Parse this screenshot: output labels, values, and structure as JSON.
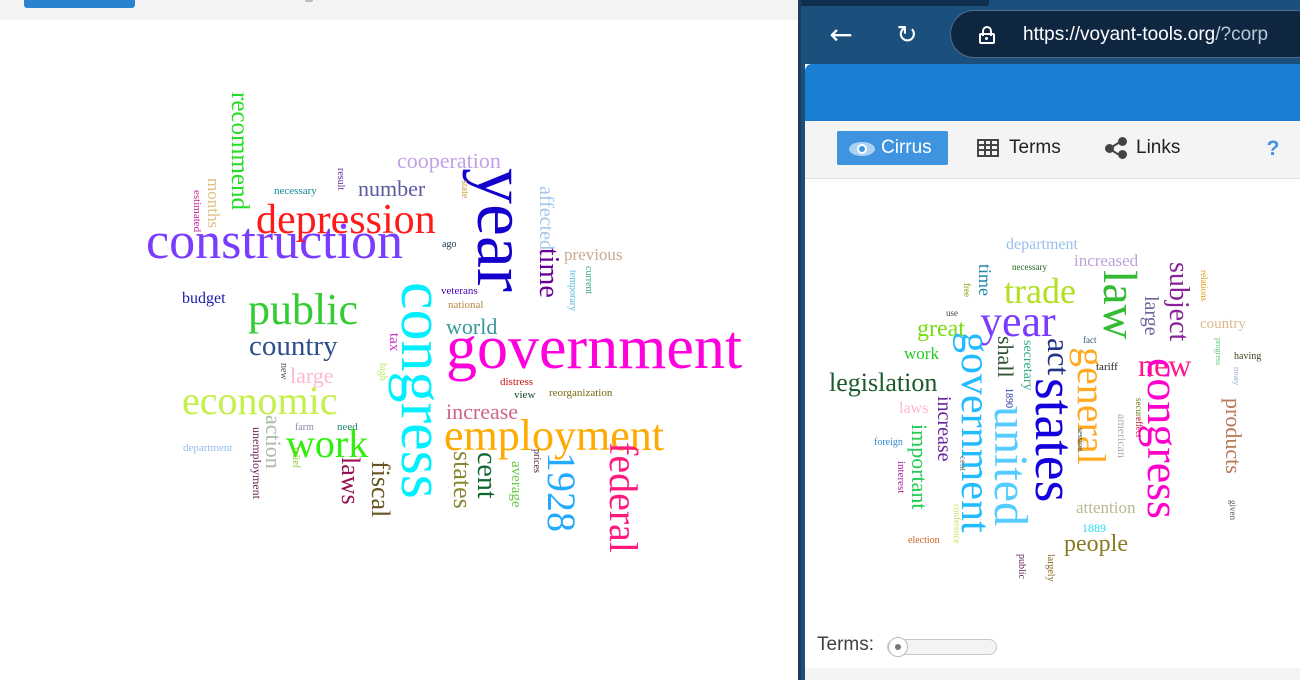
{
  "browser": {
    "url_main": "https://voyant-tools.org",
    "url_rest": "/?corp",
    "back_icon": "arrow-left-icon",
    "reload_icon": "reload-icon",
    "lock_icon": "lock-icon"
  },
  "toolbar": {
    "cirrus_label": "Cirrus",
    "terms_label": "Terms",
    "links_label": "Links",
    "help_label": "?"
  },
  "footer": {
    "terms_label": "Terms:",
    "slider_value": 0
  },
  "left_cloud": {
    "words": [
      {
        "w": "construction",
        "c": "#7a3cff"
      },
      {
        "w": "government",
        "c": "#ff00dd"
      },
      {
        "w": "year",
        "c": "#1400cc"
      },
      {
        "w": "congress",
        "c": "#00f0ff"
      },
      {
        "w": "depression",
        "c": "#ff1a1a"
      },
      {
        "w": "employment",
        "c": "#ffaa00"
      },
      {
        "w": "public",
        "c": "#33cc33"
      },
      {
        "w": "economic",
        "c": "#c4f04a"
      },
      {
        "w": "work",
        "c": "#2ef00c"
      },
      {
        "w": "country",
        "c": "#2e4f8a"
      },
      {
        "w": "federal",
        "c": "#ff1a80"
      },
      {
        "w": "1928",
        "c": "#22aaff"
      },
      {
        "w": "cooperation",
        "c": "#c0a0e8"
      },
      {
        "w": "number",
        "c": "#5a5aa0"
      },
      {
        "w": "recommend",
        "c": "#22dd22"
      },
      {
        "w": "months",
        "c": "#ddc080"
      },
      {
        "w": "estimated",
        "c": "#cc2299"
      },
      {
        "w": "necessary",
        "c": "#118899"
      },
      {
        "w": "result",
        "c": "#662299"
      },
      {
        "w": "state",
        "c": "#cc9933"
      },
      {
        "w": "affected",
        "c": "#a7c5e8"
      },
      {
        "w": "time",
        "c": "#6a0099"
      },
      {
        "w": "previous",
        "c": "#c8a890"
      },
      {
        "w": "current",
        "c": "#33aa88"
      },
      {
        "w": "temporary",
        "c": "#55bbdd"
      },
      {
        "w": "ago",
        "c": "#223355"
      },
      {
        "w": "budget",
        "c": "#1a1aaa"
      },
      {
        "w": "veterans",
        "c": "#4400aa"
      },
      {
        "w": "national",
        "c": "#bb8844"
      },
      {
        "w": "world",
        "c": "#339999"
      },
      {
        "w": "tax",
        "c": "#cc33cc"
      },
      {
        "w": "large",
        "c": "#ffb8d0"
      },
      {
        "w": "high",
        "c": "#bbee66"
      },
      {
        "w": "new",
        "c": "#555555"
      },
      {
        "w": "distress",
        "c": "#cc1111"
      },
      {
        "w": "view",
        "c": "#114422"
      },
      {
        "w": "reorganization",
        "c": "#776611"
      },
      {
        "w": "increase",
        "c": "#cc6688"
      },
      {
        "w": "laws",
        "c": "#991155"
      },
      {
        "w": "fiscal",
        "c": "#665522"
      },
      {
        "w": "states",
        "c": "#888833"
      },
      {
        "w": "cent",
        "c": "#116633"
      },
      {
        "w": "average",
        "c": "#66cc44"
      },
      {
        "w": "prices",
        "c": "#442233"
      },
      {
        "w": "department",
        "c": "#99bbee"
      },
      {
        "w": "unemployment",
        "c": "#662255"
      },
      {
        "w": "action",
        "c": "#aabbaa"
      },
      {
        "w": "farm",
        "c": "#9988aa"
      },
      {
        "w": "need",
        "c": "#228877"
      },
      {
        "w": "relief",
        "c": "#88cc22"
      }
    ]
  },
  "right_cloud": {
    "words": [
      {
        "w": "department",
        "c": "#99c0ee"
      },
      {
        "w": "increased",
        "c": "#c0a0d8"
      },
      {
        "w": "necessary",
        "c": "#226622"
      },
      {
        "w": "trade",
        "c": "#b0e020"
      },
      {
        "w": "law",
        "c": "#33bb33"
      },
      {
        "w": "subject",
        "c": "#882299"
      },
      {
        "w": "relations",
        "c": "#dd9900"
      },
      {
        "w": "country",
        "c": "#e0b890"
      },
      {
        "w": "progress",
        "c": "#55cc77"
      },
      {
        "w": "having",
        "c": "#444422"
      },
      {
        "w": "free",
        "c": "#889900"
      },
      {
        "w": "time",
        "c": "#2288aa"
      },
      {
        "w": "use",
        "c": "#444444"
      },
      {
        "w": "year",
        "c": "#7a3cff"
      },
      {
        "w": "great",
        "c": "#77dd11"
      },
      {
        "w": "large",
        "c": "#666699"
      },
      {
        "w": "new",
        "c": "#ff1a88"
      },
      {
        "w": "treaty",
        "c": "#99aacc"
      },
      {
        "w": "work",
        "c": "#22cc22"
      },
      {
        "w": "shall",
        "c": "#335533"
      },
      {
        "w": "act",
        "c": "#223388"
      },
      {
        "w": "fact",
        "c": "#335566"
      },
      {
        "w": "legislation",
        "c": "#1a5a2a"
      },
      {
        "w": "government",
        "c": "#22bbff"
      },
      {
        "w": "secretary",
        "c": "#33aa88"
      },
      {
        "w": "states",
        "c": "#1400dd"
      },
      {
        "w": "general",
        "c": "#ffaa22"
      },
      {
        "w": "tariff",
        "c": "#222222"
      },
      {
        "w": "congress",
        "c": "#ff00cc"
      },
      {
        "w": "products",
        "c": "#bb7755"
      },
      {
        "w": "laws",
        "c": "#ffb8c8"
      },
      {
        "w": "1890",
        "c": "#2233aa"
      },
      {
        "w": "secure",
        "c": "#667711"
      },
      {
        "w": "effect",
        "c": "#cc1133"
      },
      {
        "w": "american",
        "c": "#aaaaaa"
      },
      {
        "w": "increase",
        "c": "#6a2299"
      },
      {
        "w": "united",
        "c": "#55ccff"
      },
      {
        "w": "session",
        "c": "#334455"
      },
      {
        "w": "foreign",
        "c": "#3388cc"
      },
      {
        "w": "interest",
        "c": "#aa2299"
      },
      {
        "w": "important",
        "c": "#22cc55"
      },
      {
        "w": "cent",
        "c": "#777777"
      },
      {
        "w": "attention",
        "c": "#b8b890"
      },
      {
        "w": "given",
        "c": "#555566"
      },
      {
        "w": "1889",
        "c": "#22ddee"
      },
      {
        "w": "people",
        "c": "#8a7a22"
      },
      {
        "w": "conference",
        "c": "#ccdd55"
      },
      {
        "w": "election",
        "c": "#cc6622"
      },
      {
        "w": "public",
        "c": "#662266"
      },
      {
        "w": "largely",
        "c": "#886622"
      }
    ]
  }
}
